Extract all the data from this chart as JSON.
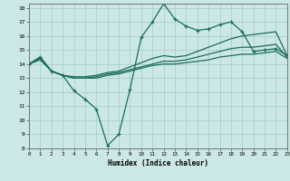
{
  "title": "",
  "xlabel": "Humidex (Indice chaleur)",
  "ylabel": "",
  "bg_color": "#cce8e6",
  "grid_color": "#aacfcc",
  "line_color": "#1a6b5e",
  "xlim": [
    0,
    23
  ],
  "ylim": [
    8,
    18.3
  ],
  "yticks": [
    8,
    9,
    10,
    11,
    12,
    13,
    14,
    15,
    16,
    17,
    18
  ],
  "xticks": [
    0,
    1,
    2,
    3,
    4,
    5,
    6,
    7,
    8,
    9,
    10,
    11,
    12,
    13,
    14,
    15,
    16,
    17,
    18,
    19,
    20,
    21,
    22,
    23
  ],
  "line1_x": [
    0,
    1,
    2,
    3,
    4,
    5,
    6,
    7,
    8,
    9,
    10,
    11,
    12,
    13,
    14,
    15,
    16,
    17,
    18,
    19,
    20,
    21,
    22,
    23
  ],
  "line1_y": [
    14.0,
    14.5,
    13.5,
    13.2,
    12.1,
    11.5,
    10.8,
    8.2,
    9.0,
    12.2,
    15.9,
    17.0,
    18.3,
    17.2,
    16.7,
    16.4,
    16.5,
    16.8,
    17.0,
    16.3,
    14.9,
    15.0,
    15.1,
    14.6
  ],
  "line2_x": [
    0,
    1,
    2,
    3,
    4,
    5,
    6,
    7,
    8,
    9,
    10,
    11,
    12,
    13,
    14,
    15,
    16,
    17,
    18,
    19,
    20,
    21,
    22,
    23
  ],
  "line2_y": [
    14.0,
    14.5,
    13.5,
    13.2,
    13.1,
    13.1,
    13.2,
    13.4,
    13.5,
    13.8,
    14.1,
    14.4,
    14.6,
    14.5,
    14.6,
    14.9,
    15.2,
    15.5,
    15.8,
    16.0,
    16.1,
    16.2,
    16.3,
    14.6
  ],
  "line3_x": [
    0,
    1,
    2,
    3,
    4,
    5,
    6,
    7,
    8,
    9,
    10,
    11,
    12,
    13,
    14,
    15,
    16,
    17,
    18,
    19,
    20,
    21,
    22,
    23
  ],
  "line3_y": [
    14.0,
    14.4,
    13.5,
    13.2,
    13.0,
    13.0,
    13.1,
    13.3,
    13.4,
    13.6,
    13.8,
    14.0,
    14.2,
    14.2,
    14.3,
    14.5,
    14.7,
    14.9,
    15.1,
    15.2,
    15.2,
    15.3,
    15.4,
    14.5
  ],
  "line4_x": [
    0,
    1,
    2,
    3,
    4,
    5,
    6,
    7,
    8,
    9,
    10,
    11,
    12,
    13,
    14,
    15,
    16,
    17,
    18,
    19,
    20,
    21,
    22,
    23
  ],
  "line4_y": [
    14.0,
    14.3,
    13.5,
    13.2,
    13.0,
    13.0,
    13.0,
    13.2,
    13.3,
    13.5,
    13.7,
    13.9,
    14.0,
    14.0,
    14.1,
    14.2,
    14.3,
    14.5,
    14.6,
    14.7,
    14.7,
    14.8,
    14.9,
    14.4
  ]
}
